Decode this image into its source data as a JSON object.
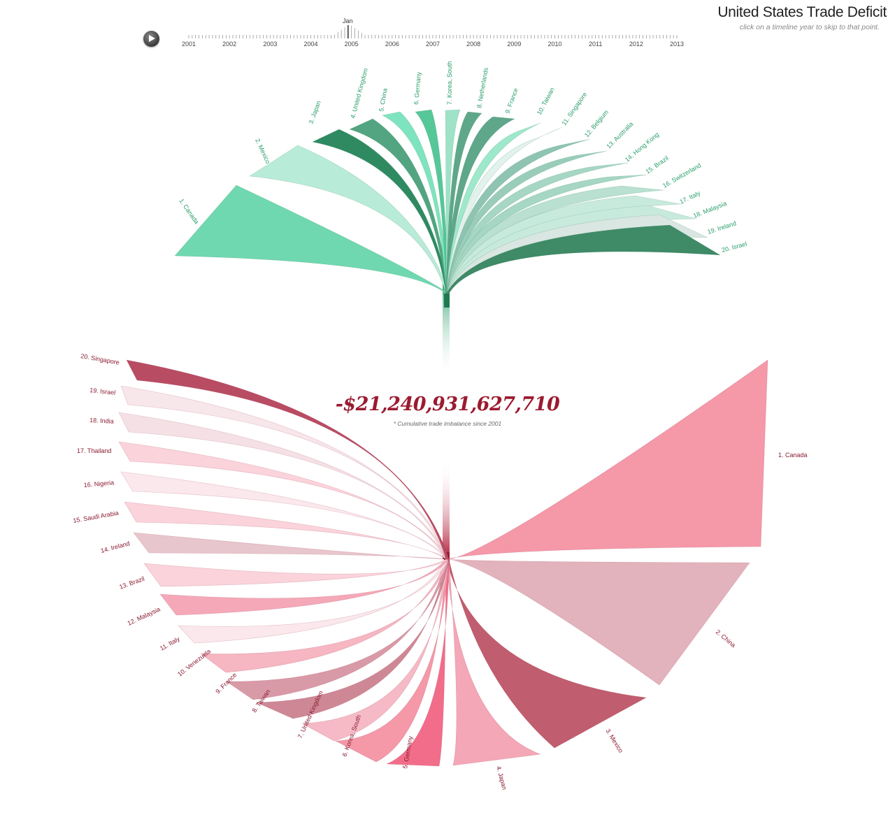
{
  "header": {
    "title": "United States Trade Deficit",
    "subtitle": "click on a timeline year to skip to that point."
  },
  "timeline": {
    "month": "Jan",
    "years": [
      "2001",
      "2002",
      "2003",
      "2004",
      "2005",
      "2006",
      "2007",
      "2008",
      "2009",
      "2010",
      "2011",
      "2012",
      "2013"
    ],
    "current_year": "2005"
  },
  "total": {
    "value": "-$21,240,931,627,710",
    "note": "* Cumulative trade imbalance since 2001"
  },
  "colors": {
    "green": "#3cbf86",
    "red": "#d9304f"
  },
  "chart_data": [
    {
      "type": "fan",
      "series": "surplus",
      "labels": [
        "1. Canada",
        "2. Mexico",
        "3. Japan",
        "4. United Kingdom",
        "5. China",
        "6. Germany",
        "7. Korea, South",
        "8. Netherlands",
        "9. France",
        "10. Taiwan",
        "11. Singapore",
        "12. Belgium",
        "13. Australia",
        "14. Hong Kong",
        "15. Brazil",
        "16. Switzerland",
        "17. Italy",
        "18. Malaysia",
        "19. Ireland",
        "20. Israel"
      ]
    },
    {
      "type": "fan",
      "series": "deficit",
      "labels": [
        "1. Canada",
        "2. China",
        "3. Mexico",
        "4. Japan",
        "5. Germany",
        "6. Korea, South",
        "7. United Kingdom",
        "8. Taiwan",
        "9. France",
        "10. Venezuela",
        "11. Italy",
        "12. Malaysia",
        "13. Brazil",
        "14. Ireland",
        "15. Saudi Arabia",
        "16. Nigeria",
        "17. Thailand",
        "18. India",
        "19. Israel",
        "20. Singapore"
      ]
    }
  ]
}
